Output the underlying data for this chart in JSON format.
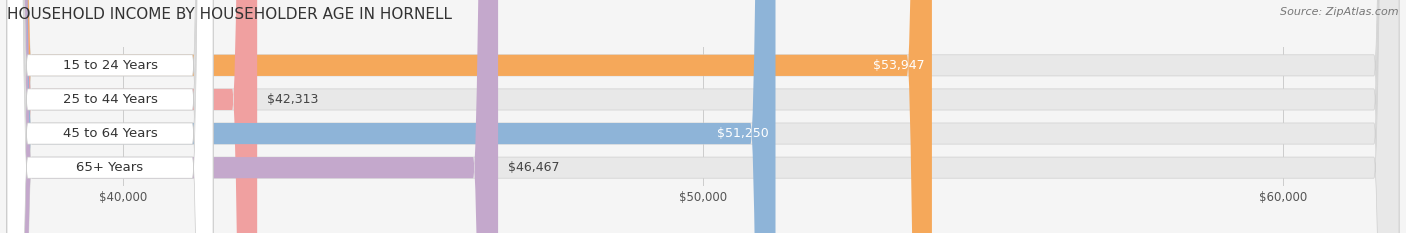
{
  "title": "HOUSEHOLD INCOME BY HOUSEHOLDER AGE IN HORNELL",
  "source": "Source: ZipAtlas.com",
  "categories": [
    "15 to 24 Years",
    "25 to 44 Years",
    "45 to 64 Years",
    "65+ Years"
  ],
  "values": [
    53947,
    42313,
    51250,
    46467
  ],
  "labels": [
    "$53,947",
    "$42,313",
    "$51,250",
    "$46,467"
  ],
  "bar_colors": [
    "#F5A85A",
    "#F0A0A0",
    "#8EB4D8",
    "#C4A8CC"
  ],
  "xmin": 38000,
  "xmax": 62000,
  "xticks": [
    40000,
    50000,
    60000
  ],
  "xticklabels": [
    "$40,000",
    "$50,000",
    "$60,000"
  ],
  "background_color": "#f5f5f5",
  "bar_background": "#e8e8e8",
  "title_fontsize": 11,
  "source_fontsize": 8,
  "label_fontsize": 9,
  "category_fontsize": 9.5,
  "bar_height": 0.62,
  "label_inside_color": "#ffffff",
  "label_outside_color": "#444444",
  "label_inside_threshold": 50000
}
